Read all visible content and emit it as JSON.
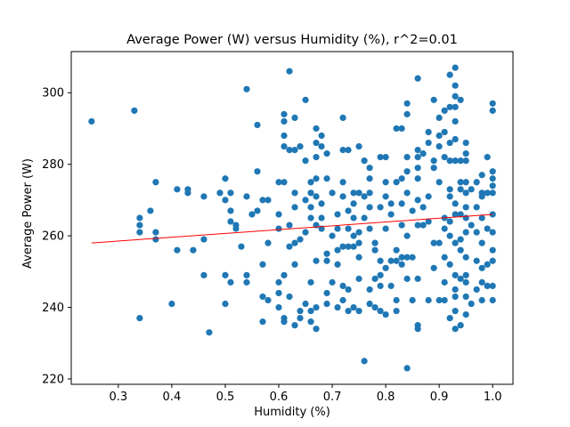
{
  "chart_data": {
    "type": "scatter",
    "title": "Average Power (W) versus Humidity (%), r^2=0.01",
    "xlabel": "Humidity (%)",
    "ylabel": "Average Power (W)",
    "xlim": [
      0.212,
      1.038
    ],
    "ylim": [
      218.5,
      311.5
    ],
    "xticks": [
      0.3,
      0.4,
      0.5,
      0.6,
      0.7,
      0.8,
      0.9,
      1.0
    ],
    "xtick_labels": [
      "0.3",
      "0.4",
      "0.5",
      "0.6",
      "0.7",
      "0.8",
      "0.9",
      "1.0"
    ],
    "yticks": [
      220,
      240,
      260,
      280,
      300
    ],
    "ytick_labels": [
      "220",
      "240",
      "260",
      "280",
      "300"
    ],
    "grid": false,
    "colors": {
      "points": "#1f77b4",
      "fit_line": "#ff0000",
      "axes": "#000000"
    },
    "fit_line": {
      "x": [
        0.25,
        1.0
      ],
      "y": [
        258.0,
        266.0
      ]
    },
    "points": [
      [
        0.25,
        292
      ],
      [
        0.33,
        295
      ],
      [
        0.34,
        265
      ],
      [
        0.34,
        263
      ],
      [
        0.34,
        261
      ],
      [
        0.34,
        237
      ],
      [
        0.36,
        267
      ],
      [
        0.37,
        275
      ],
      [
        0.37,
        261
      ],
      [
        0.37,
        259
      ],
      [
        0.4,
        241
      ],
      [
        0.41,
        273
      ],
      [
        0.41,
        256
      ],
      [
        0.43,
        273
      ],
      [
        0.43,
        272
      ],
      [
        0.44,
        256
      ],
      [
        0.46,
        271
      ],
      [
        0.46,
        259
      ],
      [
        0.46,
        249
      ],
      [
        0.47,
        233
      ],
      [
        0.49,
        272
      ],
      [
        0.5,
        276
      ],
      [
        0.5,
        270
      ],
      [
        0.5,
        249
      ],
      [
        0.5,
        241
      ],
      [
        0.51,
        272
      ],
      [
        0.51,
        267
      ],
      [
        0.51,
        264
      ],
      [
        0.51,
        247
      ],
      [
        0.52,
        262
      ],
      [
        0.52,
        263
      ],
      [
        0.53,
        257
      ],
      [
        0.54,
        301
      ],
      [
        0.54,
        271
      ],
      [
        0.54,
        249
      ],
      [
        0.54,
        247
      ],
      [
        0.55,
        266
      ],
      [
        0.56,
        291
      ],
      [
        0.56,
        278
      ],
      [
        0.56,
        267
      ],
      [
        0.57,
        270
      ],
      [
        0.57,
        252
      ],
      [
        0.57,
        243
      ],
      [
        0.57,
        236
      ],
      [
        0.58,
        270
      ],
      [
        0.58,
        258
      ],
      [
        0.58,
        242
      ],
      [
        0.6,
        275
      ],
      [
        0.6,
        266
      ],
      [
        0.6,
        262
      ],
      [
        0.6,
        247
      ],
      [
        0.6,
        244
      ],
      [
        0.6,
        240
      ],
      [
        0.61,
        294
      ],
      [
        0.61,
        292
      ],
      [
        0.61,
        288
      ],
      [
        0.61,
        285
      ],
      [
        0.61,
        275
      ],
      [
        0.61,
        249
      ],
      [
        0.61,
        237
      ],
      [
        0.61,
        236
      ],
      [
        0.62,
        306
      ],
      [
        0.62,
        284
      ],
      [
        0.62,
        263
      ],
      [
        0.62,
        257
      ],
      [
        0.62,
        243
      ],
      [
        0.63,
        293
      ],
      [
        0.63,
        284
      ],
      [
        0.63,
        272
      ],
      [
        0.63,
        268
      ],
      [
        0.63,
        258
      ],
      [
        0.63,
        252
      ],
      [
        0.63,
        235
      ],
      [
        0.64,
        285
      ],
      [
        0.64,
        259
      ],
      [
        0.64,
        239
      ],
      [
        0.64,
        237
      ],
      [
        0.65,
        298
      ],
      [
        0.65,
        281
      ],
      [
        0.65,
        270
      ],
      [
        0.65,
        261
      ],
      [
        0.65,
        241
      ],
      [
        0.66,
        275
      ],
      [
        0.66,
        272
      ],
      [
        0.66,
        268
      ],
      [
        0.66,
        265
      ],
      [
        0.66,
        247
      ],
      [
        0.66,
        239
      ],
      [
        0.66,
        236
      ],
      [
        0.67,
        290
      ],
      [
        0.67,
        286
      ],
      [
        0.67,
        282
      ],
      [
        0.67,
        276
      ],
      [
        0.67,
        271
      ],
      [
        0.67,
        263
      ],
      [
        0.67,
        253
      ],
      [
        0.67,
        240
      ],
      [
        0.67,
        234
      ],
      [
        0.68,
        288
      ],
      [
        0.68,
        285
      ],
      [
        0.68,
        269
      ],
      [
        0.68,
        265
      ],
      [
        0.68,
        262
      ],
      [
        0.69,
        283
      ],
      [
        0.69,
        276
      ],
      [
        0.69,
        255
      ],
      [
        0.69,
        253
      ],
      [
        0.69,
        244
      ],
      [
        0.69,
        241
      ],
      [
        0.7,
        272
      ],
      [
        0.7,
        260
      ],
      [
        0.7,
        247
      ],
      [
        0.71,
        266
      ],
      [
        0.71,
        262
      ],
      [
        0.71,
        256
      ],
      [
        0.71,
        252
      ],
      [
        0.71,
        240
      ],
      [
        0.72,
        293
      ],
      [
        0.72,
        284
      ],
      [
        0.72,
        275
      ],
      [
        0.72,
        271
      ],
      [
        0.72,
        257
      ],
      [
        0.72,
        246
      ],
      [
        0.72,
        242
      ],
      [
        0.73,
        284
      ],
      [
        0.73,
        267
      ],
      [
        0.73,
        262
      ],
      [
        0.73,
        257
      ],
      [
        0.73,
        245
      ],
      [
        0.73,
        239
      ],
      [
        0.74,
        272
      ],
      [
        0.74,
        269
      ],
      [
        0.74,
        265
      ],
      [
        0.74,
        260
      ],
      [
        0.74,
        257
      ],
      [
        0.74,
        240
      ],
      [
        0.75,
        285
      ],
      [
        0.75,
        272
      ],
      [
        0.75,
        261
      ],
      [
        0.75,
        258
      ],
      [
        0.75,
        254
      ],
      [
        0.75,
        248
      ],
      [
        0.75,
        239
      ],
      [
        0.76,
        281
      ],
      [
        0.76,
        271
      ],
      [
        0.76,
        265
      ],
      [
        0.76,
        225
      ],
      [
        0.77,
        279
      ],
      [
        0.77,
        276
      ],
      [
        0.77,
        272
      ],
      [
        0.77,
        268
      ],
      [
        0.77,
        262
      ],
      [
        0.77,
        245
      ],
      [
        0.77,
        241
      ],
      [
        0.78,
        258
      ],
      [
        0.78,
        256
      ],
      [
        0.78,
        248
      ],
      [
        0.78,
        240
      ],
      [
        0.79,
        282
      ],
      [
        0.79,
        268
      ],
      [
        0.79,
        253
      ],
      [
        0.79,
        249
      ],
      [
        0.79,
        246
      ],
      [
        0.79,
        239
      ],
      [
        0.8,
        282
      ],
      [
        0.8,
        275
      ],
      [
        0.8,
        271
      ],
      [
        0.8,
        262
      ],
      [
        0.8,
        251
      ],
      [
        0.8,
        238
      ],
      [
        0.81,
        269
      ],
      [
        0.81,
        266
      ],
      [
        0.81,
        253
      ],
      [
        0.81,
        246
      ],
      [
        0.82,
        290
      ],
      [
        0.82,
        275
      ],
      [
        0.82,
        256
      ],
      [
        0.82,
        253
      ],
      [
        0.82,
        242
      ],
      [
        0.82,
        239
      ],
      [
        0.83,
        290
      ],
      [
        0.83,
        276
      ],
      [
        0.83,
        269
      ],
      [
        0.83,
        263
      ],
      [
        0.83,
        254
      ],
      [
        0.83,
        252
      ],
      [
        0.84,
        297
      ],
      [
        0.84,
        294
      ],
      [
        0.84,
        282
      ],
      [
        0.84,
        278
      ],
      [
        0.84,
        272
      ],
      [
        0.84,
        260
      ],
      [
        0.84,
        254
      ],
      [
        0.84,
        248
      ],
      [
        0.84,
        223
      ],
      [
        0.85,
        267
      ],
      [
        0.85,
        254
      ],
      [
        0.85,
        242
      ],
      [
        0.86,
        304
      ],
      [
        0.86,
        284
      ],
      [
        0.86,
        282
      ],
      [
        0.86,
        279
      ],
      [
        0.86,
        276
      ],
      [
        0.86,
        270
      ],
      [
        0.86,
        263
      ],
      [
        0.86,
        248
      ],
      [
        0.86,
        235
      ],
      [
        0.86,
        234
      ],
      [
        0.87,
        283
      ],
      [
        0.87,
        268
      ],
      [
        0.87,
        263
      ],
      [
        0.88,
        289
      ],
      [
        0.88,
        286
      ],
      [
        0.88,
        271
      ],
      [
        0.88,
        264
      ],
      [
        0.88,
        242
      ],
      [
        0.89,
        298
      ],
      [
        0.89,
        281
      ],
      [
        0.89,
        279
      ],
      [
        0.89,
        258
      ],
      [
        0.89,
        251
      ],
      [
        0.9,
        293
      ],
      [
        0.9,
        288
      ],
      [
        0.9,
        285
      ],
      [
        0.9,
        275
      ],
      [
        0.9,
        258
      ],
      [
        0.9,
        242
      ],
      [
        0.91,
        295
      ],
      [
        0.91,
        289
      ],
      [
        0.91,
        282
      ],
      [
        0.91,
        265
      ],
      [
        0.91,
        262
      ],
      [
        0.91,
        254
      ],
      [
        0.91,
        247
      ],
      [
        0.91,
        242
      ],
      [
        0.92,
        305
      ],
      [
        0.92,
        296
      ],
      [
        0.92,
        286
      ],
      [
        0.92,
        281
      ],
      [
        0.92,
        273
      ],
      [
        0.92,
        271
      ],
      [
        0.92,
        264
      ],
      [
        0.92,
        260
      ],
      [
        0.92,
        252
      ],
      [
        0.92,
        237
      ],
      [
        0.93,
        307
      ],
      [
        0.93,
        302
      ],
      [
        0.93,
        299
      ],
      [
        0.93,
        296
      ],
      [
        0.93,
        292
      ],
      [
        0.93,
        287
      ],
      [
        0.93,
        281
      ],
      [
        0.93,
        269
      ],
      [
        0.93,
        266
      ],
      [
        0.93,
        258
      ],
      [
        0.93,
        249
      ],
      [
        0.93,
        245
      ],
      [
        0.93,
        243
      ],
      [
        0.93,
        239
      ],
      [
        0.93,
        234
      ],
      [
        0.94,
        298
      ],
      [
        0.94,
        281
      ],
      [
        0.94,
        275
      ],
      [
        0.94,
        273
      ],
      [
        0.94,
        266
      ],
      [
        0.94,
        259
      ],
      [
        0.94,
        256
      ],
      [
        0.94,
        248
      ],
      [
        0.94,
        235
      ],
      [
        0.95,
        286
      ],
      [
        0.95,
        283
      ],
      [
        0.95,
        281
      ],
      [
        0.95,
        275
      ],
      [
        0.95,
        272
      ],
      [
        0.95,
        268
      ],
      [
        0.95,
        265
      ],
      [
        0.95,
        261
      ],
      [
        0.95,
        254
      ],
      [
        0.95,
        249
      ],
      [
        0.95,
        247
      ],
      [
        0.95,
        243
      ],
      [
        0.95,
        238
      ],
      [
        0.96,
        273
      ],
      [
        0.96,
        263
      ],
      [
        0.96,
        241
      ],
      [
        0.97,
        275
      ],
      [
        0.97,
        268
      ],
      [
        0.97,
        261
      ],
      [
        0.97,
        253
      ],
      [
        0.97,
        245
      ],
      [
        0.98,
        277
      ],
      [
        0.98,
        272
      ],
      [
        0.98,
        271
      ],
      [
        0.98,
        265
      ],
      [
        0.98,
        258
      ],
      [
        0.98,
        251
      ],
      [
        0.98,
        247
      ],
      [
        0.98,
        242
      ],
      [
        0.99,
        282
      ],
      [
        0.99,
        272
      ],
      [
        0.99,
        262
      ],
      [
        0.99,
        252
      ],
      [
        0.99,
        246
      ],
      [
        1.0,
        297
      ],
      [
        1.0,
        295
      ],
      [
        1.0,
        278
      ],
      [
        1.0,
        276
      ],
      [
        1.0,
        274
      ],
      [
        1.0,
        272
      ],
      [
        1.0,
        266
      ],
      [
        1.0,
        261
      ],
      [
        1.0,
        256
      ],
      [
        1.0,
        253
      ],
      [
        1.0,
        246
      ],
      [
        1.0,
        242
      ]
    ]
  }
}
